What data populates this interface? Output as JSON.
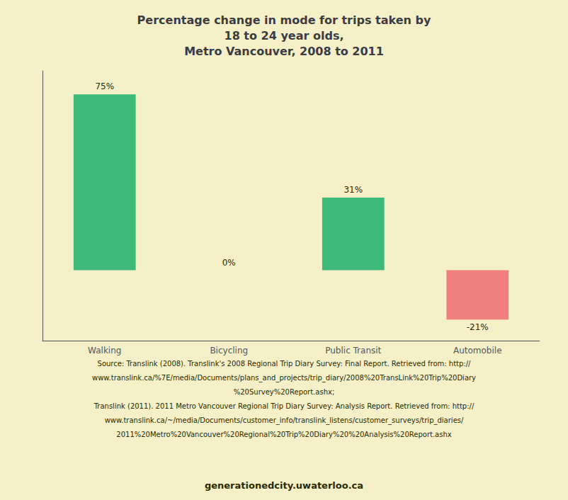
{
  "chart_data": {
    "type": "bar",
    "title": "Percentage change in mode for trips taken by\n18 to 24 year olds,\nMetro Vancouver, 2008 to 2011",
    "categories": [
      "Walking",
      "Bicycling",
      "Public Transit",
      "Automobile"
    ],
    "values": [
      75,
      0,
      31,
      -21
    ],
    "value_labels": [
      "75%",
      "0%",
      "31%",
      "-21%"
    ],
    "colors": [
      "#3dba78",
      "#3dba78",
      "#3dba78",
      "#f08080"
    ],
    "ylim": [
      -30,
      85
    ],
    "data_labels": true,
    "grid": false,
    "tick_labels": "x",
    "annotations": [
      "Source: Translink (2008). Translink's 2008 Regional Trip Diary Survey: Final Report. Retrieved from: http://",
      "www.translink.ca/%7E/media/Documents/plans_and_projects/trip_diary/2008%20TransLink%20Trip%20Diary",
      "%20Survey%20Report.ashx;",
      "Translink (2011). 2011 Metro Vancouver Regional Trip Diary Survey: Analysis Report. Retrieved from: http://",
      "www.translink.ca/~/media/Documents/customer_info/translink_listens/customer_surveys/trip_diaries/",
      "2011%20Metro%20Vancouver%20Regional%20Trip%20Diary%20%20Analysis%20Report.ashx",
      "generationedcity.uwaterloo.ca"
    ]
  }
}
